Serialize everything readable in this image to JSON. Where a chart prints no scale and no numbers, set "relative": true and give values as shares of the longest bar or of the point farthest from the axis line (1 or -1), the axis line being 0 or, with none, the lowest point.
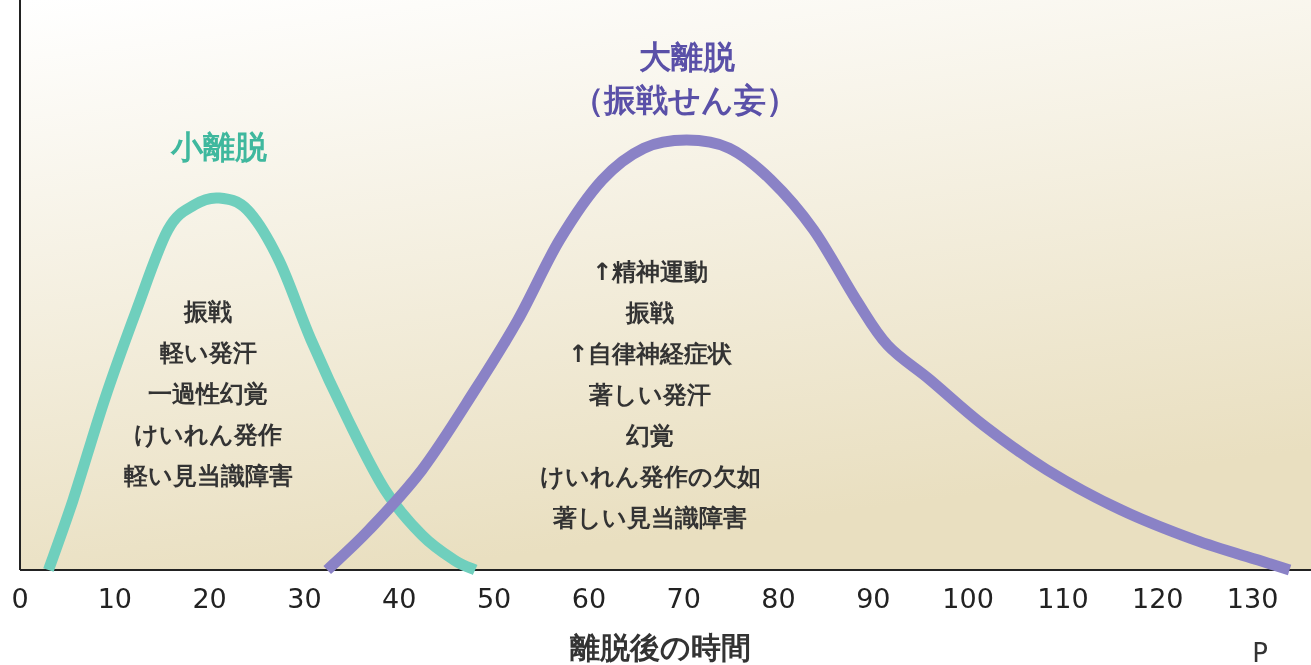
{
  "chart_data": {
    "type": "line",
    "relative": true,
    "xlabel": "離脱後の時間",
    "xlim": [
      0,
      135
    ],
    "xticks": [
      0,
      10,
      20,
      30,
      40,
      50,
      60,
      70,
      80,
      90,
      100,
      110,
      120,
      130
    ],
    "marker": "none",
    "line_style": "solid",
    "series": [
      {
        "name": "小離脱",
        "color": "#6fcfbd",
        "x": [
          3.0,
          5.6,
          8.9,
          12.3,
          15.6,
          18.4,
          21.0,
          24.0,
          27.3,
          30.7,
          34.6,
          38.5,
          42.4,
          45.8,
          48.0
        ],
        "values": [
          0,
          0.163,
          0.395,
          0.605,
          0.791,
          0.849,
          0.865,
          0.837,
          0.721,
          0.535,
          0.349,
          0.186,
          0.081,
          0.023,
          0
        ]
      },
      {
        "name": "大離脱",
        "color": "#8a82c6",
        "x": [
          32.4,
          36.8,
          42.4,
          48.0,
          52.5,
          56.9,
          61.4,
          65.8,
          70.3,
          74.8,
          79.2,
          83.7,
          88.2,
          91.5,
          96.0,
          101.6,
          108.3,
          116.1,
          123.9,
          130.6,
          133.9
        ],
        "values": [
          0,
          0.093,
          0.233,
          0.419,
          0.581,
          0.767,
          0.907,
          0.981,
          1,
          0.981,
          0.907,
          0.791,
          0.628,
          0.523,
          0.442,
          0.337,
          0.233,
          0.14,
          0.07,
          0.023,
          0
        ]
      }
    ],
    "annotations": [
      "（振戦せん妄）",
      "振戦",
      "軽い発汗",
      "一過性幻覚",
      "けいれん発作",
      "軽い見当識障害",
      "↑精神運動",
      "振戦",
      "↑自律神経症状",
      "著しい発汗",
      "幻覚",
      "けいれん発作の欠如",
      "著しい見当識障害",
      "P"
    ]
  }
}
